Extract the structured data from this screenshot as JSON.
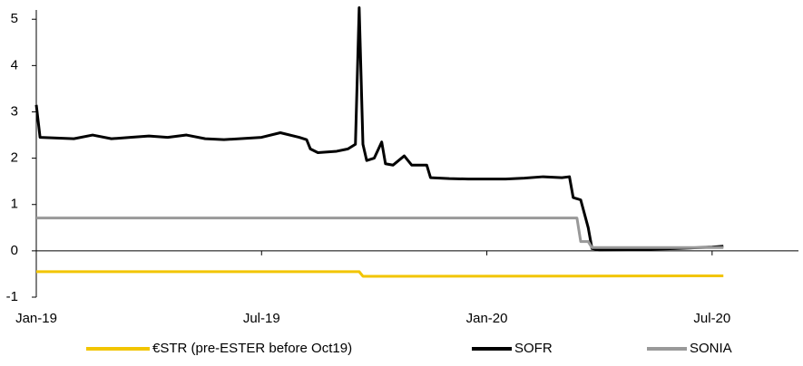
{
  "chart_data": {
    "type": "line",
    "xlim": [
      0,
      20.3
    ],
    "xticks": [
      {
        "value": 0,
        "label": "Jan-19"
      },
      {
        "value": 6,
        "label": "Jul-19"
      },
      {
        "value": 12,
        "label": "Jan-20"
      },
      {
        "value": 18,
        "label": "Jul-20"
      }
    ],
    "ylim": [
      -1,
      5.2
    ],
    "yticks": [
      -1,
      0,
      1,
      2,
      3,
      4,
      5
    ],
    "legend": "bottom",
    "series": [
      {
        "name": "€STR (pre-ESTER before Oct19)",
        "color": "#f2c500",
        "x": [
          0,
          8.6,
          8.7,
          18.3
        ],
        "values": [
          -0.45,
          -0.45,
          -0.55,
          -0.54
        ]
      },
      {
        "name": "SOFR",
        "color": "#000000",
        "x": [
          0,
          0.1,
          1,
          1.5,
          2,
          2.5,
          3,
          3.5,
          4,
          4.5,
          5,
          6,
          6.5,
          7,
          7.2,
          7.3,
          7.5,
          8,
          8.3,
          8.5,
          8.6,
          8.7,
          8.8,
          9,
          9.2,
          9.3,
          9.5,
          9.8,
          10,
          10.4,
          10.5,
          11,
          11.5,
          12,
          12.5,
          13,
          13.5,
          14,
          14.2,
          14.3,
          14.5,
          14.7,
          14.8,
          15,
          16,
          17,
          18,
          18.3
        ],
        "values": [
          3.15,
          2.45,
          2.42,
          2.5,
          2.42,
          2.45,
          2.48,
          2.45,
          2.5,
          2.42,
          2.4,
          2.45,
          2.55,
          2.45,
          2.4,
          2.2,
          2.12,
          2.15,
          2.2,
          2.3,
          5.25,
          2.3,
          1.95,
          2.0,
          2.35,
          1.88,
          1.85,
          2.05,
          1.85,
          1.85,
          1.58,
          1.56,
          1.55,
          1.55,
          1.55,
          1.57,
          1.6,
          1.58,
          1.6,
          1.15,
          1.1,
          0.5,
          0.05,
          0.02,
          0.03,
          0.05,
          0.08,
          0.1
        ]
      },
      {
        "name": "SONIA",
        "color": "#999999",
        "x": [
          0,
          14.4,
          14.5,
          14.7,
          14.8,
          18.3
        ],
        "values": [
          0.71,
          0.71,
          0.2,
          0.2,
          0.07,
          0.07
        ]
      }
    ]
  }
}
